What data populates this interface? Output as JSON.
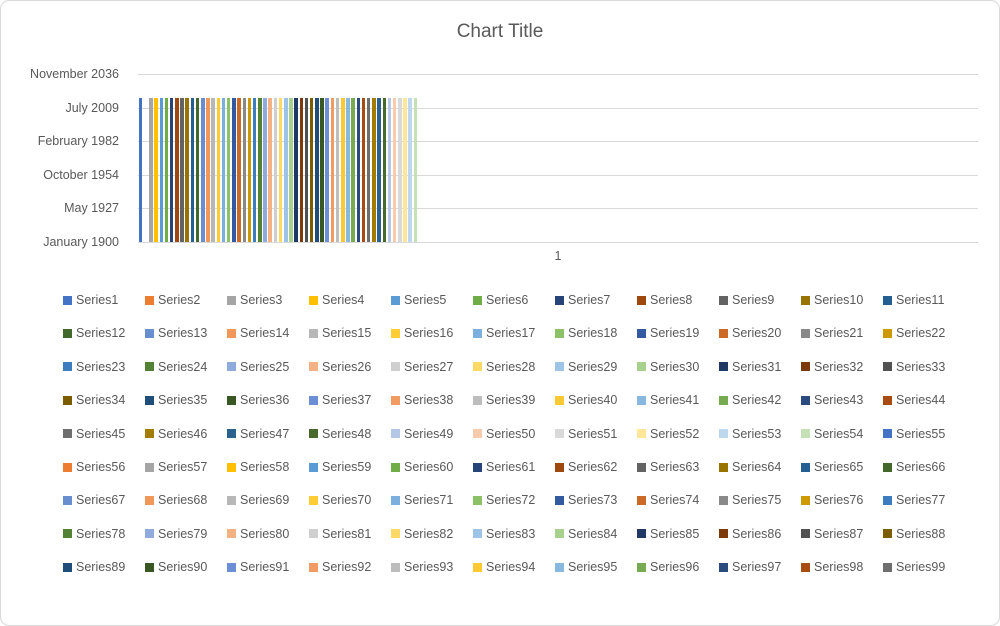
{
  "frame": {
    "border_color": "#d9d9d9",
    "background": "#ffffff"
  },
  "text_color": "#595959",
  "grid_color": "#d9d9d9",
  "chart_data": {
    "type": "bar",
    "title": "Chart Title",
    "categories": [
      "1"
    ],
    "x_tick_label": "1",
    "xlabel": "",
    "ylabel": "",
    "grid": true,
    "legend_position": "bottom",
    "legend_rows": 9,
    "legend_columns": 11,
    "y_axis": {
      "min": 0,
      "max": 50000,
      "tick_format": "date (mmmm yyyy) from day serial",
      "ticks": [
        {
          "label": "January 1900",
          "serial": 0
        },
        {
          "label": "May 1927",
          "serial": 10000
        },
        {
          "label": "October 1954",
          "serial": 20000
        },
        {
          "label": "February 1982",
          "serial": 30000
        },
        {
          "label": "July 2009",
          "serial": 40000
        },
        {
          "label": "November 2036",
          "serial": 50000
        }
      ]
    },
    "palette": [
      "#4472C4",
      "#ED7D31",
      "#A5A5A5",
      "#FFC000",
      "#5B9BD5",
      "#70AD47",
      "#264478",
      "#9E480E",
      "#636363",
      "#997300",
      "#255E91",
      "#43682B",
      "#698ED0",
      "#F1975A",
      "#B7B7B7",
      "#FFCD33",
      "#7CAFDD",
      "#8CC168",
      "#335AA1",
      "#CB6A27",
      "#898989",
      "#CC9A00",
      "#3C7DC0",
      "#548235",
      "#8FAADC",
      "#F4B183",
      "#CFCFCF",
      "#FFD966",
      "#9DC3E6",
      "#A9D18E",
      "#1F3864",
      "#7C390B",
      "#515151",
      "#7B5D00",
      "#1E4E79",
      "#385723",
      "#6B8ED4",
      "#F29B63",
      "#BDBDBD",
      "#FFC933",
      "#88B7E0",
      "#77AB52",
      "#2B4A7D",
      "#A74D11",
      "#6E6E6E",
      "#A37C04",
      "#29618F",
      "#49682B",
      "#B4C7E7",
      "#F8CBAD",
      "#D9D9D9",
      "#FFE699",
      "#BDD7EE",
      "#C5E0B4"
    ],
    "series": [
      {
        "name": "Series1",
        "value": 43000
      },
      {
        "name": "Series2",
        "value": 0
      },
      {
        "name": "Series3",
        "value": 43000
      },
      {
        "name": "Series4",
        "value": 43000
      },
      {
        "name": "Series5",
        "value": 43000
      },
      {
        "name": "Series6",
        "value": 43000
      },
      {
        "name": "Series7",
        "value": 43000
      },
      {
        "name": "Series8",
        "value": 43000
      },
      {
        "name": "Series9",
        "value": 43000
      },
      {
        "name": "Series10",
        "value": 43000
      },
      {
        "name": "Series11",
        "value": 43000
      },
      {
        "name": "Series12",
        "value": 43000
      },
      {
        "name": "Series13",
        "value": 43000
      },
      {
        "name": "Series14",
        "value": 43000
      },
      {
        "name": "Series15",
        "value": 43000
      },
      {
        "name": "Series16",
        "value": 43000
      },
      {
        "name": "Series17",
        "value": 43000
      },
      {
        "name": "Series18",
        "value": 43000
      },
      {
        "name": "Series19",
        "value": 43000
      },
      {
        "name": "Series20",
        "value": 43000
      },
      {
        "name": "Series21",
        "value": 43000
      },
      {
        "name": "Series22",
        "value": 43000
      },
      {
        "name": "Series23",
        "value": 43000
      },
      {
        "name": "Series24",
        "value": 43000
      },
      {
        "name": "Series25",
        "value": 43000
      },
      {
        "name": "Series26",
        "value": 43000
      },
      {
        "name": "Series27",
        "value": 43000
      },
      {
        "name": "Series28",
        "value": 43000
      },
      {
        "name": "Series29",
        "value": 43000
      },
      {
        "name": "Series30",
        "value": 43000
      },
      {
        "name": "Series31",
        "value": 43000
      },
      {
        "name": "Series32",
        "value": 43000
      },
      {
        "name": "Series33",
        "value": 43000
      },
      {
        "name": "Series34",
        "value": 43000
      },
      {
        "name": "Series35",
        "value": 43000
      },
      {
        "name": "Series36",
        "value": 43000
      },
      {
        "name": "Series37",
        "value": 43000
      },
      {
        "name": "Series38",
        "value": 43000
      },
      {
        "name": "Series39",
        "value": 43000
      },
      {
        "name": "Series40",
        "value": 43000
      },
      {
        "name": "Series41",
        "value": 43000
      },
      {
        "name": "Series42",
        "value": 43000
      },
      {
        "name": "Series43",
        "value": 43000
      },
      {
        "name": "Series44",
        "value": 43000
      },
      {
        "name": "Series45",
        "value": 43000
      },
      {
        "name": "Series46",
        "value": 43000
      },
      {
        "name": "Series47",
        "value": 43000
      },
      {
        "name": "Series48",
        "value": 43000
      },
      {
        "name": "Series49",
        "value": 43000
      },
      {
        "name": "Series50",
        "value": 43000
      },
      {
        "name": "Series51",
        "value": 43000
      },
      {
        "name": "Series52",
        "value": 43000
      },
      {
        "name": "Series53",
        "value": 43000
      },
      {
        "name": "Series54",
        "value": 43000
      },
      {
        "name": "Series55",
        "value": null
      },
      {
        "name": "Series56",
        "value": null
      },
      {
        "name": "Series57",
        "value": null
      },
      {
        "name": "Series58",
        "value": null
      },
      {
        "name": "Series59",
        "value": null
      },
      {
        "name": "Series60",
        "value": null
      },
      {
        "name": "Series61",
        "value": null
      },
      {
        "name": "Series62",
        "value": null
      },
      {
        "name": "Series63",
        "value": null
      },
      {
        "name": "Series64",
        "value": null
      },
      {
        "name": "Series65",
        "value": null
      },
      {
        "name": "Series66",
        "value": null
      },
      {
        "name": "Series67",
        "value": null
      },
      {
        "name": "Series68",
        "value": null
      },
      {
        "name": "Series69",
        "value": null
      },
      {
        "name": "Series70",
        "value": null
      },
      {
        "name": "Series71",
        "value": null
      },
      {
        "name": "Series72",
        "value": null
      },
      {
        "name": "Series73",
        "value": null
      },
      {
        "name": "Series74",
        "value": null
      },
      {
        "name": "Series75",
        "value": null
      },
      {
        "name": "Series76",
        "value": null
      },
      {
        "name": "Series77",
        "value": null
      },
      {
        "name": "Series78",
        "value": null
      },
      {
        "name": "Series79",
        "value": null
      },
      {
        "name": "Series80",
        "value": null
      },
      {
        "name": "Series81",
        "value": null
      },
      {
        "name": "Series82",
        "value": null
      },
      {
        "name": "Series83",
        "value": null
      },
      {
        "name": "Series84",
        "value": null
      },
      {
        "name": "Series85",
        "value": null
      },
      {
        "name": "Series86",
        "value": null
      },
      {
        "name": "Series87",
        "value": null
      },
      {
        "name": "Series88",
        "value": null
      },
      {
        "name": "Series89",
        "value": null
      },
      {
        "name": "Series90",
        "value": null
      },
      {
        "name": "Series91",
        "value": null
      },
      {
        "name": "Series92",
        "value": null
      },
      {
        "name": "Series93",
        "value": null
      },
      {
        "name": "Series94",
        "value": null
      },
      {
        "name": "Series95",
        "value": null
      },
      {
        "name": "Series96",
        "value": null
      },
      {
        "name": "Series97",
        "value": null
      },
      {
        "name": "Series98",
        "value": null
      },
      {
        "name": "Series99",
        "value": null
      }
    ]
  }
}
